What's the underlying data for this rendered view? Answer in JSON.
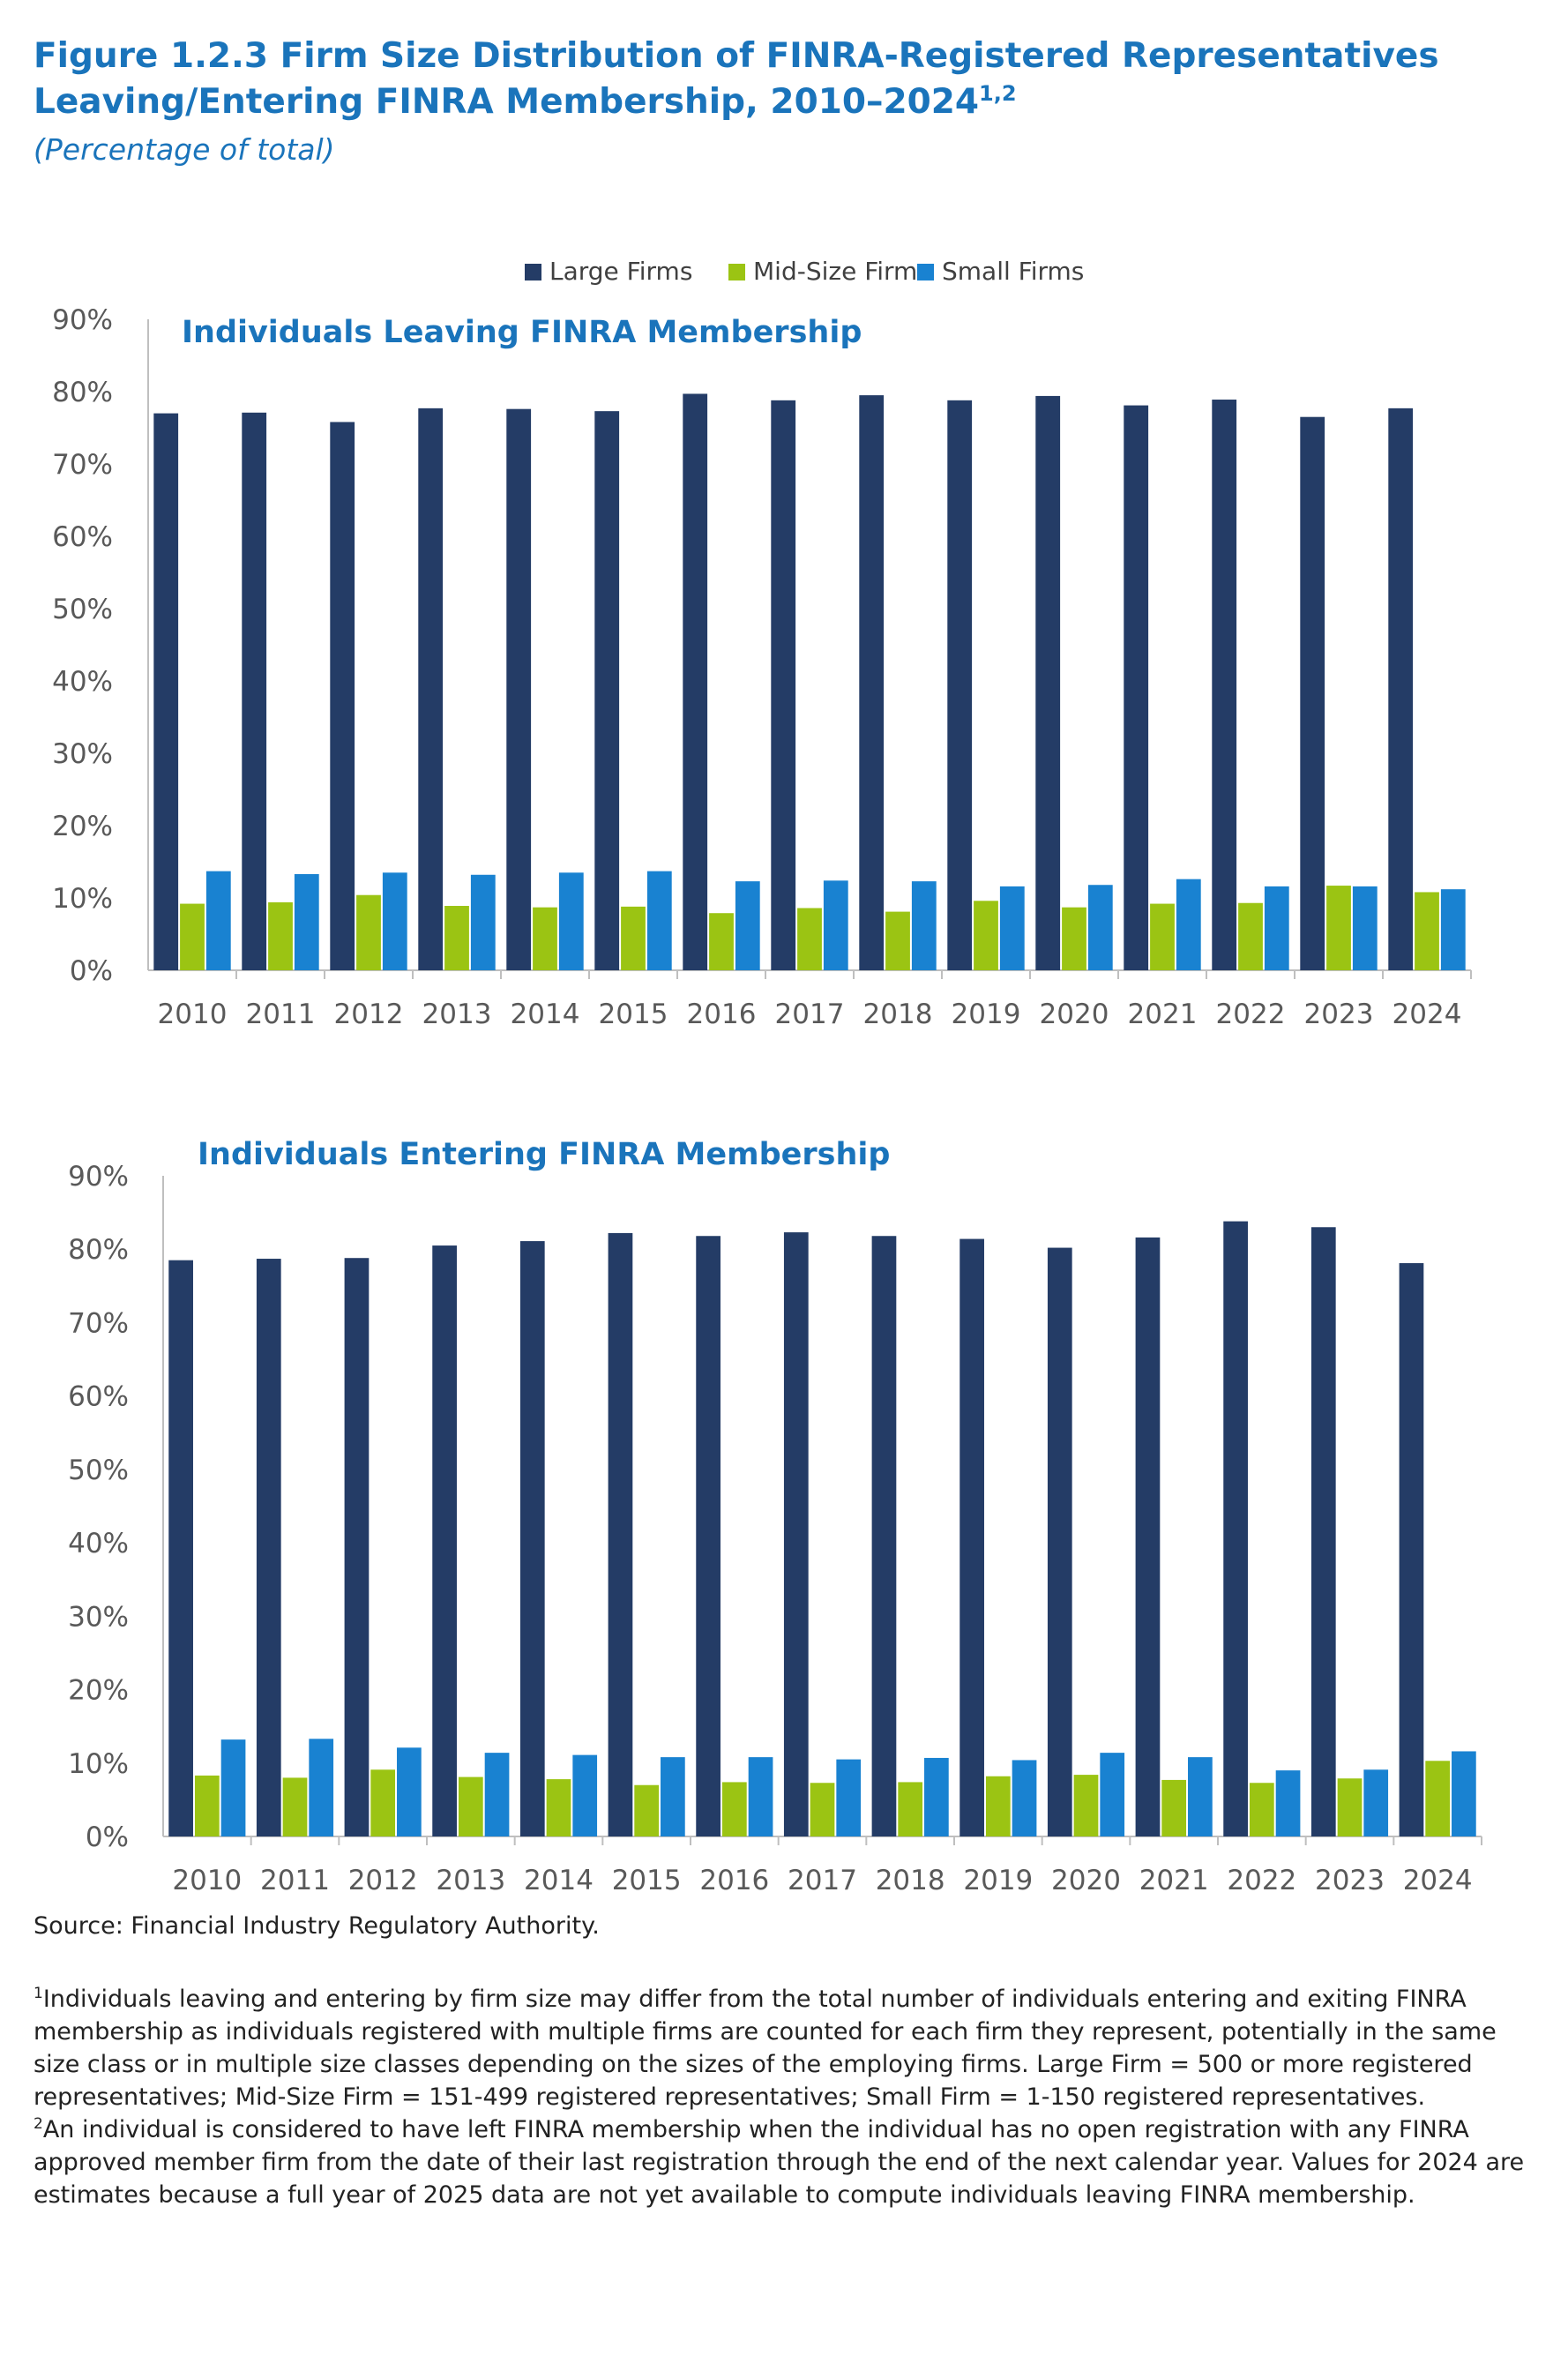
{
  "title": {
    "main": "Figure 1.2.3 Firm Size Distribution of FINRA-Registered Representatives Leaving/Entering FINRA Membership, 2010–2024",
    "sup": "1,2",
    "subtitle": "(Percentage of total)"
  },
  "legend": [
    {
      "name": "Large Firms",
      "color": "#243c66"
    },
    {
      "name": "Mid-Size Firms",
      "color": "#9bc413"
    },
    {
      "name": "Small Firms",
      "color": "#1982d1"
    }
  ],
  "chart_data": [
    {
      "type": "bar",
      "title": "Individuals Leaving FINRA Membership",
      "categories": [
        "2010",
        "2011",
        "2012",
        "2013",
        "2014",
        "2015",
        "2016",
        "2017",
        "2018",
        "2019",
        "2020",
        "2021",
        "2022",
        "2023",
        "2024"
      ],
      "series": [
        {
          "name": "Large Firms",
          "values": [
            77.0,
            77.1,
            75.8,
            77.7,
            77.6,
            77.3,
            79.7,
            78.8,
            79.5,
            78.8,
            79.4,
            78.1,
            78.9,
            76.5,
            77.7
          ]
        },
        {
          "name": "Mid-Size Firms",
          "values": [
            9.2,
            9.4,
            10.4,
            8.9,
            8.7,
            8.8,
            7.9,
            8.6,
            8.1,
            9.6,
            8.7,
            9.2,
            9.3,
            11.7,
            10.8
          ]
        },
        {
          "name": "Small Firms",
          "values": [
            13.7,
            13.3,
            13.5,
            13.2,
            13.5,
            13.7,
            12.3,
            12.4,
            12.3,
            11.6,
            11.8,
            12.6,
            11.6,
            11.6,
            11.2
          ]
        }
      ],
      "yticks": [
        "0%",
        "10%",
        "20%",
        "30%",
        "40%",
        "50%",
        "60%",
        "70%",
        "80%",
        "90%"
      ],
      "ylim": [
        0,
        90
      ],
      "xlabel": "",
      "ylabel": ""
    },
    {
      "type": "bar",
      "title": "Individuals Entering FINRA Membership",
      "categories": [
        "2010",
        "2011",
        "2012",
        "2013",
        "2014",
        "2015",
        "2016",
        "2017",
        "2018",
        "2019",
        "2020",
        "2021",
        "2022",
        "2023",
        "2024"
      ],
      "series": [
        {
          "name": "Large Firms",
          "values": [
            78.5,
            78.7,
            78.8,
            80.5,
            81.1,
            82.2,
            81.8,
            82.3,
            81.8,
            81.4,
            80.2,
            81.6,
            83.8,
            83.0,
            78.1
          ]
        },
        {
          "name": "Mid-Size Firms",
          "values": [
            8.3,
            8.0,
            9.1,
            8.1,
            7.8,
            7.0,
            7.4,
            7.3,
            7.4,
            8.2,
            8.4,
            7.7,
            7.3,
            7.9,
            10.3
          ]
        },
        {
          "name": "Small Firms",
          "values": [
            13.2,
            13.3,
            12.1,
            11.4,
            11.1,
            10.8,
            10.8,
            10.5,
            10.7,
            10.4,
            11.4,
            10.8,
            9.0,
            9.1,
            11.6
          ]
        }
      ],
      "yticks": [
        "0%",
        "10%",
        "20%",
        "30%",
        "40%",
        "50%",
        "60%",
        "70%",
        "80%",
        "90%"
      ],
      "ylim": [
        0,
        90
      ],
      "xlabel": "",
      "ylabel": ""
    }
  ],
  "source": "Source: Financial Industry Regulatory Authority.",
  "footnotes": [
    {
      "num": "1",
      "text": "Individuals leaving and entering by firm size may differ from the total number of individuals entering and exiting FINRA membership as individuals registered with multiple firms are counted for each firm they represent, potentially in the same size class or in multiple size classes depending on the sizes of the employing firms. Large Firm = 500 or more registered representatives; Mid-Size Firm = 151-499 registered representatives; Small Firm = 1-150 registered representatives."
    },
    {
      "num": "2",
      "text": "An individual is considered to have left FINRA membership when the individual has no open registration with any FINRA approved member firm from the date of their last registration through the end of the next calendar year. Values for 2024 are estimates because a full year of 2025 data are not yet available to compute individuals leaving FINRA membership."
    }
  ]
}
